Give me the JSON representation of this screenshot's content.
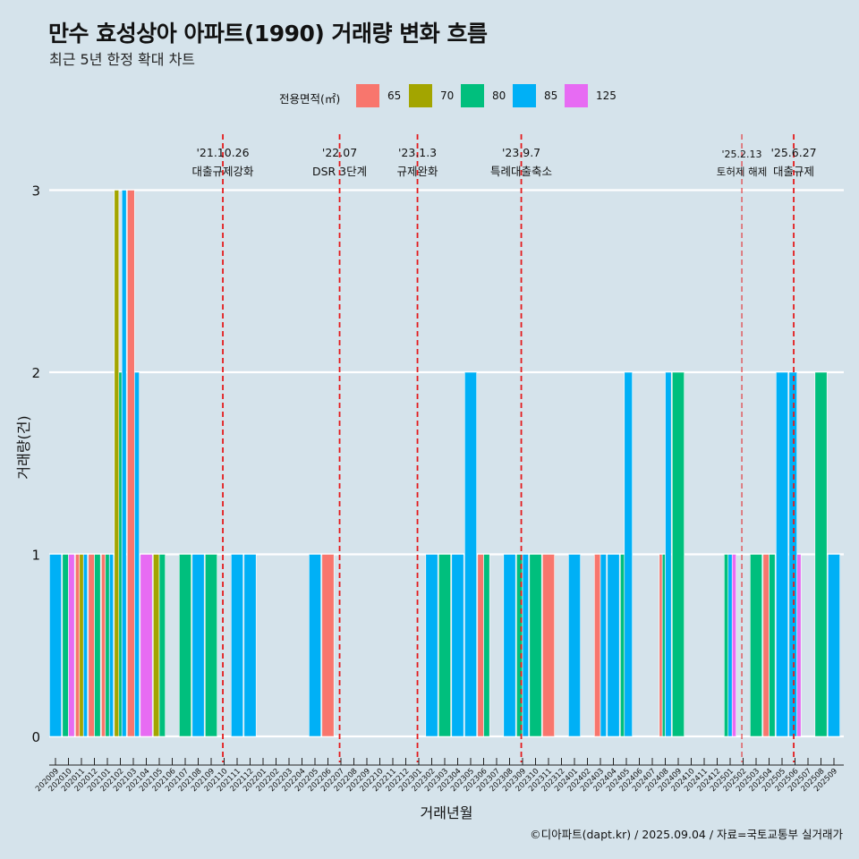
{
  "header": {
    "title": "만수 효성상아 아파트(1990) 거래량 변화 흐름",
    "subtitle": "최근 5년 한정 확대 차트"
  },
  "caption": "©디아파트(dapt.kr) / 2025.09.04 / 자료=국토교통부 실거래가",
  "colors": {
    "background": "#d5e3eb",
    "65": "#f8766d",
    "70": "#a3a500",
    "80": "#00bf7d",
    "85": "#00b0f6",
    "125": "#e76bf3",
    "event_line": "#e41a1c"
  },
  "chart_data": {
    "type": "bar",
    "title": "만수 효성상아 아파트(1990) 거래량 변화 흐름",
    "subtitle": "최근 5년 한정 확대 차트",
    "xlabel": "거래년월",
    "ylabel": "거래량(건)",
    "ylim": [
      0,
      3
    ],
    "yticks": [
      "0",
      "1",
      "2",
      "3"
    ],
    "grid": "horizontal major lines",
    "legend": {
      "title": "전용면적(㎡)",
      "position": "top",
      "entries": [
        "65",
        "70",
        "80",
        "85",
        "125"
      ]
    },
    "months": [
      "202009",
      "202010",
      "202011",
      "202012",
      "202101",
      "202102",
      "202103",
      "202104",
      "202105",
      "202106",
      "202107",
      "202108",
      "202109",
      "202110",
      "202111",
      "202112",
      "202201",
      "202202",
      "202203",
      "202204",
      "202205",
      "202206",
      "202207",
      "202208",
      "202209",
      "202210",
      "202211",
      "202212",
      "202301",
      "202302",
      "202303",
      "202304",
      "202305",
      "202306",
      "202307",
      "202308",
      "202309",
      "202310",
      "202311",
      "202312",
      "202401",
      "202402",
      "202403",
      "202404",
      "202405",
      "202406",
      "202407",
      "202408",
      "202409",
      "202410",
      "202411",
      "202412",
      "202501",
      "202502",
      "202503",
      "202504",
      "202505",
      "202506",
      "202507",
      "202508",
      "202509"
    ],
    "series": [
      {
        "name": "65",
        "values": [
          0,
          0,
          1,
          1,
          1,
          0,
          3,
          0,
          0,
          0,
          0,
          0,
          0,
          0,
          0,
          0,
          0,
          0,
          0,
          0,
          0,
          1,
          0,
          0,
          0,
          0,
          0,
          0,
          0,
          0,
          0,
          0,
          0,
          1,
          0,
          0,
          0,
          0,
          1,
          0,
          0,
          0,
          1,
          0,
          0,
          0,
          0,
          1,
          0,
          0,
          0,
          0,
          0,
          0,
          0,
          1,
          0,
          0,
          0,
          0,
          0
        ]
      },
      {
        "name": "70",
        "values": [
          0,
          0,
          1,
          0,
          0,
          3,
          0,
          0,
          1,
          0,
          0,
          0,
          0,
          0,
          0,
          0,
          0,
          0,
          0,
          0,
          0,
          0,
          0,
          0,
          0,
          0,
          0,
          0,
          0,
          0,
          0,
          0,
          0,
          0,
          0,
          0,
          0,
          0,
          0,
          0,
          0,
          0,
          0,
          0,
          0,
          0,
          0,
          0,
          0,
          0,
          0,
          0,
          0,
          0,
          0,
          0,
          0,
          0,
          0,
          0,
          0
        ]
      },
      {
        "name": "80",
        "values": [
          0,
          1,
          0,
          1,
          1,
          2,
          0,
          0,
          1,
          0,
          1,
          0,
          1,
          0,
          0,
          0,
          0,
          0,
          0,
          0,
          0,
          0,
          0,
          0,
          0,
          0,
          0,
          0,
          0,
          0,
          1,
          0,
          0,
          1,
          0,
          0,
          1,
          1,
          0,
          0,
          0,
          0,
          0,
          0,
          1,
          0,
          0,
          1,
          2,
          0,
          0,
          0,
          1,
          0,
          1,
          1,
          0,
          0,
          0,
          2,
          0
        ]
      },
      {
        "name": "85",
        "values": [
          1,
          0,
          1,
          0,
          1,
          3,
          2,
          0,
          0,
          0,
          0,
          1,
          0,
          0,
          1,
          1,
          0,
          0,
          0,
          0,
          1,
          0,
          0,
          0,
          0,
          0,
          0,
          0,
          0,
          1,
          0,
          1,
          2,
          0,
          0,
          1,
          1,
          0,
          0,
          0,
          1,
          0,
          1,
          1,
          2,
          0,
          0,
          2,
          0,
          0,
          0,
          0,
          1,
          0,
          0,
          0,
          2,
          2,
          0,
          0,
          1
        ]
      },
      {
        "name": "125",
        "values": [
          0,
          1,
          0,
          0,
          0,
          0,
          0,
          1,
          0,
          0,
          0,
          0,
          0,
          0,
          0,
          0,
          0,
          0,
          0,
          0,
          0,
          0,
          0,
          0,
          0,
          0,
          0,
          0,
          0,
          0,
          0,
          0,
          0,
          0,
          0,
          0,
          0,
          0,
          0,
          0,
          0,
          0,
          0,
          0,
          0,
          0,
          0,
          0,
          0,
          0,
          0,
          0,
          1,
          0,
          0,
          0,
          0,
          1,
          0,
          0,
          0
        ]
      }
    ],
    "events": [
      {
        "date": "'21.10.26",
        "label": "대출규제강화",
        "month": "202110"
      },
      {
        "date": "'22.07",
        "label": "DSR 3단계",
        "month": "202207"
      },
      {
        "date": "'23.1.3",
        "label": "규제완화",
        "month": "202301"
      },
      {
        "date": "'23.9.7",
        "label": "특례대출축소",
        "month": "202309"
      },
      {
        "date": "'25.2.13",
        "label": "토허제 해제",
        "month": "202502"
      },
      {
        "date": "'25.6.27",
        "label": "대출규제",
        "month": "202506"
      }
    ]
  }
}
